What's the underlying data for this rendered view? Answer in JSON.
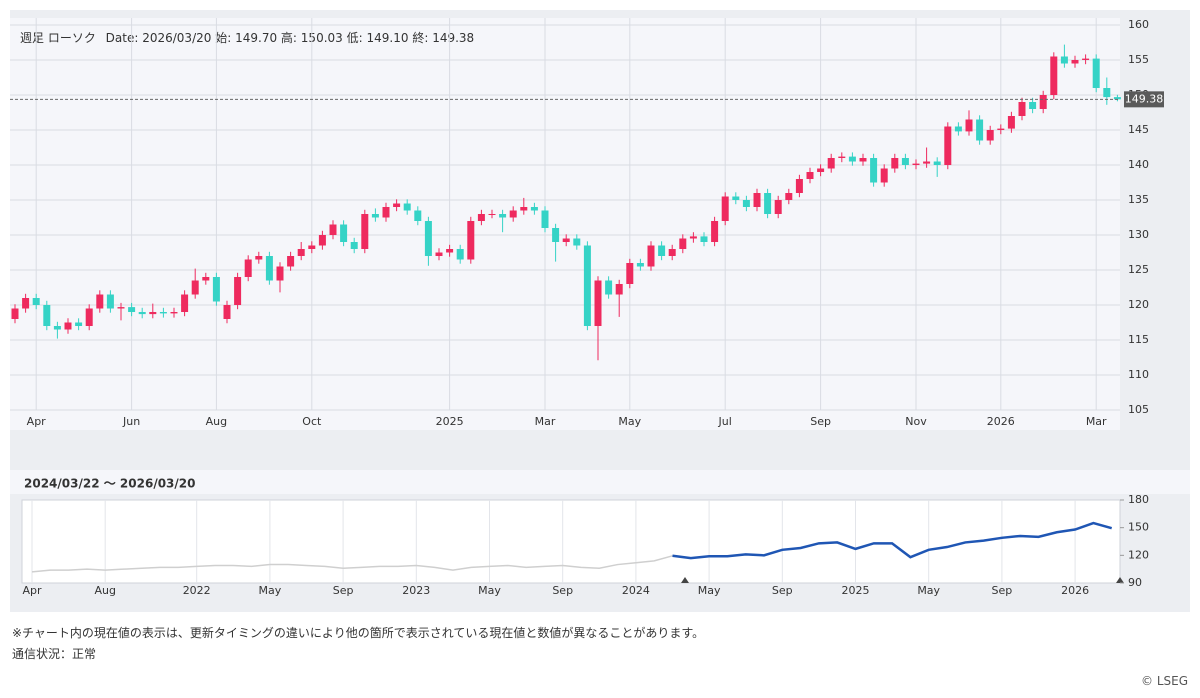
{
  "chart_data": [
    {
      "type": "candlestick",
      "header": {
        "label": "週足 ローソク",
        "date_label": "Date:",
        "date": "2026/03/20",
        "open_label": "始:",
        "open": "149.70",
        "high_label": "高:",
        "high": "150.03",
        "low_label": "低:",
        "low": "149.10",
        "close_label": "終:",
        "close": "149.38"
      },
      "categories": [
        null,
        null,
        "Apr",
        null,
        null,
        null,
        null,
        null,
        null,
        null,
        null,
        "Jun",
        null,
        null,
        null,
        null,
        null,
        null,
        null,
        "Aug",
        null,
        null,
        null,
        null,
        null,
        null,
        null,
        null,
        "Oct",
        null,
        null,
        null,
        null,
        null,
        null,
        null,
        null,
        null,
        null,
        null,
        null,
        "2025",
        null,
        null,
        null,
        null,
        null,
        null,
        null,
        null,
        "Mar",
        null,
        null,
        null,
        null,
        null,
        null,
        null,
        "May",
        null,
        null,
        null,
        null,
        null,
        null,
        null,
        null,
        "Jul",
        null,
        null,
        null,
        null,
        null,
        null,
        null,
        null,
        "Sep",
        null,
        null,
        null,
        null,
        null,
        null,
        null,
        null,
        "Nov",
        null,
        null,
        null,
        null,
        null,
        null,
        null,
        "2026",
        null,
        null,
        null,
        null,
        null,
        null,
        null,
        null,
        "Mar",
        null,
        null
      ],
      "open": [
        118,
        119.5,
        121,
        120,
        117,
        116.5,
        117.5,
        117,
        119.5,
        121.5,
        119.5,
        119.7,
        119,
        118.7,
        119,
        118.8,
        119,
        121.5,
        123.5,
        124,
        118,
        120,
        124,
        126.5,
        127,
        123.5,
        125.5,
        127,
        128,
        128.5,
        130,
        131.5,
        129,
        128,
        133,
        132.5,
        134,
        134.5,
        133.5,
        132,
        127,
        127.5,
        128,
        126.5,
        132,
        133,
        133,
        132.5,
        133.5,
        134,
        133.5,
        131,
        129,
        129.5,
        128.5,
        117,
        123.5,
        121.5,
        123,
        126,
        125.5,
        128.5,
        127,
        128,
        129.5,
        129.8,
        129,
        132,
        135.5,
        135,
        134,
        136,
        133,
        135,
        136,
        138,
        139,
        139.5,
        141,
        141.2,
        140.5,
        141,
        137.5,
        139.5,
        141,
        140,
        140.2,
        140.5,
        140,
        145.5,
        144.8,
        146.5,
        143.5,
        145,
        145.2,
        147,
        149,
        148,
        150,
        155.5,
        154.5,
        155,
        155.2,
        151,
        149.7
      ],
      "high": [
        120.1,
        121.6,
        121.6,
        120.6,
        117.6,
        118.1,
        118.1,
        120.1,
        122.1,
        122.1,
        120.3,
        120.3,
        119.6,
        120.2,
        119.6,
        119.6,
        122.1,
        125.2,
        124.6,
        124.6,
        120.6,
        124.6,
        127.1,
        127.6,
        127.6,
        126.1,
        127.6,
        129,
        129.1,
        130.6,
        132.1,
        132.1,
        129.6,
        133.6,
        133.8,
        134.6,
        135.1,
        135.1,
        134.1,
        132.6,
        128.1,
        128.6,
        128.6,
        132.6,
        133.6,
        133.6,
        133.6,
        134.1,
        135.3,
        134.6,
        134.1,
        131.6,
        130.1,
        130.1,
        129.1,
        124.1,
        124.1,
        123.6,
        126.6,
        126.6,
        129.1,
        129.1,
        128.6,
        130.1,
        130.4,
        130.4,
        132.6,
        136.1,
        136.1,
        135.6,
        136.6,
        136.6,
        135.6,
        136.6,
        138.6,
        139.6,
        140.1,
        141.6,
        141.8,
        141.8,
        141.6,
        141.6,
        140.1,
        141.6,
        141.6,
        140.8,
        142.5,
        141.1,
        146.1,
        146.1,
        147.8,
        147.1,
        145.6,
        145.8,
        147.6,
        149.6,
        149.6,
        150.6,
        156.1,
        157.2,
        155.6,
        155.8,
        155.8,
        152.5,
        150.03
      ],
      "low": [
        117.4,
        118.9,
        119.4,
        116.4,
        115.2,
        115.9,
        116.4,
        116.4,
        118.9,
        118.9,
        117.8,
        118.4,
        118.1,
        118.1,
        118.2,
        118.2,
        118.4,
        120.9,
        122.9,
        119.9,
        117.4,
        119.4,
        123.4,
        125.9,
        122.9,
        121.8,
        124.9,
        126.4,
        127.4,
        127.9,
        129.4,
        128.4,
        127.4,
        127.4,
        131.9,
        131.9,
        133.4,
        132.9,
        131.4,
        125.6,
        126.4,
        126.9,
        125.9,
        125.9,
        131.4,
        132.4,
        130.4,
        131.9,
        132.9,
        132.9,
        130.4,
        126.2,
        128.4,
        127.9,
        116.4,
        112.1,
        120.9,
        118.3,
        122.4,
        124.9,
        124.9,
        126.4,
        126.4,
        127.4,
        128.9,
        128.4,
        128.4,
        131.4,
        134.4,
        133.4,
        133.4,
        132.4,
        132.4,
        134.4,
        135.4,
        137.4,
        138.4,
        138.9,
        140.4,
        139.9,
        139.9,
        136.9,
        136.9,
        138.9,
        139.4,
        139.4,
        139.6,
        138.3,
        139.4,
        144.2,
        144.2,
        142.9,
        142.9,
        144.4,
        144.6,
        146.4,
        147.4,
        147.4,
        149.4,
        153.9,
        153.9,
        154.4,
        150.4,
        148.6,
        149.1
      ],
      "close": [
        119.5,
        121,
        120,
        117,
        116.5,
        117.5,
        117,
        119.5,
        121.5,
        119.5,
        119.7,
        119,
        118.7,
        119,
        118.8,
        119,
        121.5,
        123.5,
        124,
        120.5,
        120,
        124,
        126.5,
        127,
        123.5,
        125.5,
        127,
        128,
        128.5,
        130,
        131.5,
        129,
        128,
        133,
        132.5,
        134,
        134.5,
        133.5,
        132,
        127,
        127.5,
        128,
        126.5,
        132,
        133,
        133,
        132.5,
        133.5,
        134,
        133.5,
        131,
        129,
        129.5,
        128.5,
        117,
        123.5,
        121.5,
        123,
        126,
        125.5,
        128.5,
        127,
        128,
        129.5,
        129.8,
        129,
        132,
        135.5,
        135,
        134,
        136,
        133,
        135,
        136,
        138,
        139,
        139.5,
        141,
        141.2,
        140.5,
        141,
        137.5,
        139.5,
        141,
        140,
        140.2,
        140.5,
        140,
        145.5,
        144.8,
        146.5,
        143.5,
        145,
        145.2,
        147,
        149,
        148,
        150,
        155.5,
        154.5,
        155,
        155.2,
        151,
        149.7,
        149.38
      ],
      "up_color": "#ee2a5e",
      "down_color": "#35d3c6",
      "ylim": [
        105,
        161
      ],
      "yticks": [
        105,
        110,
        115,
        120,
        125,
        130,
        135,
        140,
        145,
        150,
        155,
        160
      ],
      "grid": true,
      "last_value_label": "149.38"
    },
    {
      "type": "line",
      "title": "2024/03/22 〜 2026/03/20",
      "categories": [
        "Apr",
        null,
        null,
        null,
        "Aug",
        null,
        null,
        null,
        null,
        "2022",
        null,
        null,
        null,
        "May",
        null,
        null,
        null,
        "Sep",
        null,
        null,
        null,
        "2023",
        null,
        null,
        null,
        "May",
        null,
        null,
        null,
        "Sep",
        null,
        null,
        null,
        "2024",
        null,
        null,
        null,
        "May",
        null,
        null,
        null,
        "Sep",
        null,
        null,
        null,
        "2025",
        null,
        null,
        null,
        "May",
        null,
        null,
        null,
        "Sep",
        null,
        null,
        null,
        "2026",
        null,
        null
      ],
      "series": [
        {
          "color": "#cfcfcf",
          "values": [
            102,
            104,
            104,
            105,
            104,
            105,
            106,
            107,
            107,
            108,
            109,
            109,
            108,
            110,
            110,
            109,
            108,
            106,
            107,
            108,
            108,
            109,
            107,
            104,
            107,
            108,
            109,
            107,
            108,
            109,
            107,
            106,
            110,
            112,
            114,
            119.5,
            null,
            null,
            null,
            null,
            null,
            null,
            null,
            null,
            null,
            null,
            null,
            null,
            null,
            null,
            null,
            null,
            null,
            null,
            null,
            null,
            null,
            null,
            null,
            null
          ]
        },
        {
          "color": "#1f56b4",
          "values": [
            null,
            null,
            null,
            null,
            null,
            null,
            null,
            null,
            null,
            null,
            null,
            null,
            null,
            null,
            null,
            null,
            null,
            null,
            null,
            null,
            null,
            null,
            null,
            null,
            null,
            null,
            null,
            null,
            null,
            null,
            null,
            null,
            null,
            null,
            null,
            119.5,
            117,
            119,
            119,
            121,
            120,
            126,
            128,
            133,
            134,
            127,
            133,
            133,
            118,
            126,
            129,
            134,
            136,
            139,
            141,
            140,
            145,
            148,
            155,
            149.4
          ]
        }
      ],
      "ylim": [
        90,
        180
      ],
      "yticks": [
        90,
        120,
        150,
        180
      ]
    }
  ],
  "footer": {
    "note": "※チャート内の現在値の表示は、更新タイミングの違いにより他の箇所で表示されている現在値と数値が異なることがあります。",
    "status": "通信状況：正常",
    "copyright": "© LSEG"
  }
}
